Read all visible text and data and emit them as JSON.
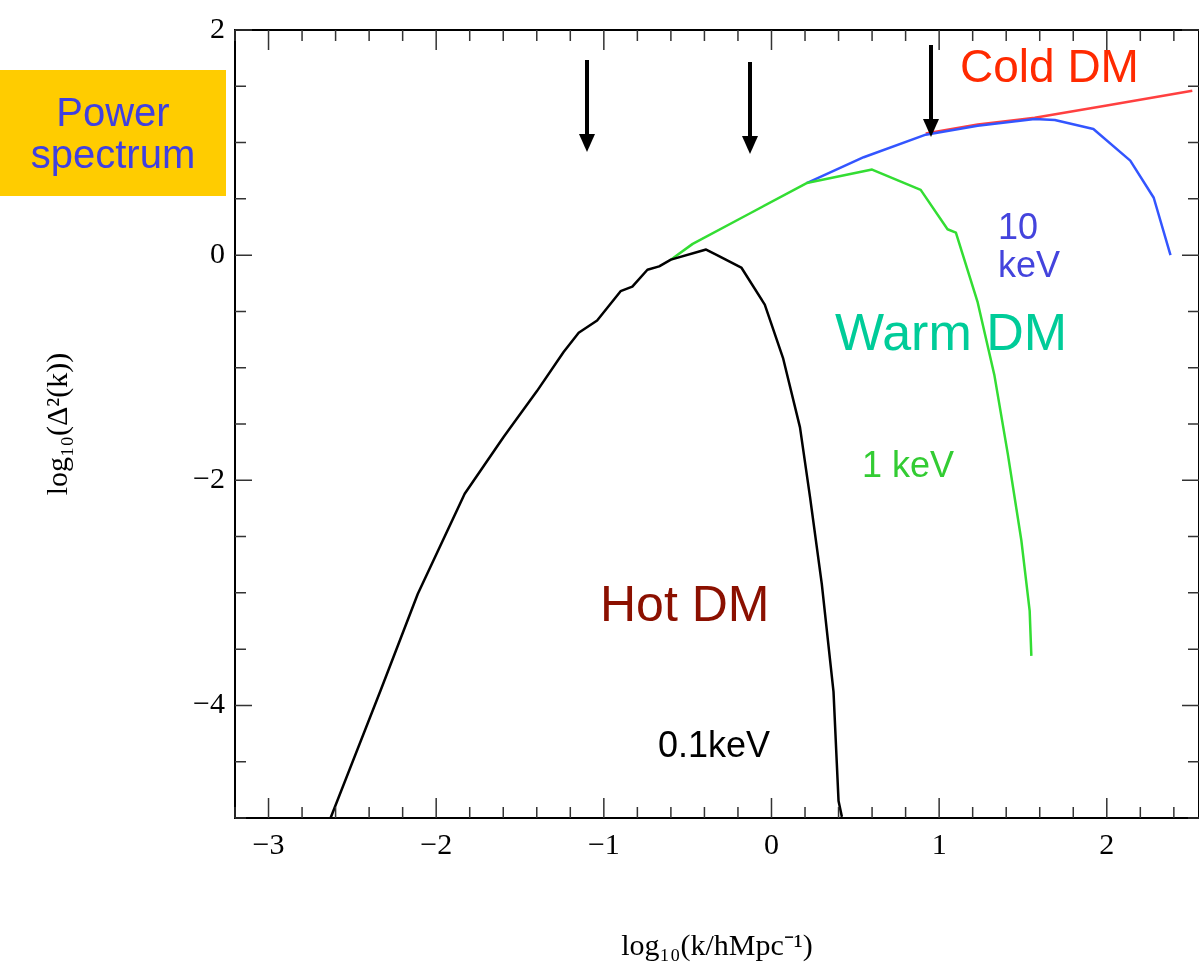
{
  "chart_data": {
    "type": "line",
    "xlabel": "log₁₀(k/hMpc⁻¹)",
    "ylabel": "log₁₀(Δ²(k))",
    "xlim": [
      -3.2,
      2.55
    ],
    "ylim": [
      -5,
      2
    ],
    "xticks": [
      {
        "value": -3.2,
        "label": null
      },
      -3,
      {
        "value": -2.8,
        "label": null
      },
      {
        "value": -2.6,
        "label": null
      },
      {
        "value": -2.4,
        "label": null
      },
      {
        "value": -2.2,
        "label": null
      },
      -2,
      {
        "value": -1.8,
        "label": null
      },
      {
        "value": -1.6,
        "label": null
      },
      {
        "value": -1.4,
        "label": null
      },
      {
        "value": -1.2,
        "label": null
      },
      -1,
      {
        "value": -0.8,
        "label": null
      },
      {
        "value": -0.6,
        "label": null
      },
      {
        "value": -0.4,
        "label": null
      },
      {
        "value": -0.2,
        "label": null
      },
      0,
      {
        "value": 0.2,
        "label": null
      },
      {
        "value": 0.4,
        "label": null
      },
      {
        "value": 0.6,
        "label": null
      },
      {
        "value": 0.8,
        "label": null
      },
      1,
      {
        "value": 1.2,
        "label": null
      },
      {
        "value": 1.4,
        "label": null
      },
      {
        "value": 1.6,
        "label": null
      },
      {
        "value": 1.8,
        "label": null
      },
      2,
      {
        "value": 2.2,
        "label": null
      },
      {
        "value": 2.4,
        "label": null
      }
    ],
    "yticks": [
      {
        "value": -5,
        "label": null
      },
      {
        "value": -4.5,
        "label": null
      },
      -4,
      {
        "value": -3.5,
        "label": null
      },
      {
        "value": -3,
        "label": null
      },
      {
        "value": -2.5,
        "label": null
      },
      -2,
      {
        "value": -1.5,
        "label": null
      },
      {
        "value": -1,
        "label": null
      },
      {
        "value": -0.5,
        "label": null
      },
      0,
      {
        "value": 0.5,
        "label": null
      },
      {
        "value": 1,
        "label": null
      },
      {
        "value": 1.5,
        "label": null
      },
      2
    ],
    "grid": false,
    "legend": false,
    "marker": "none",
    "line_style": "solid",
    "series": [
      {
        "name": "Cold DM",
        "color": "#ff4040",
        "x": [
          0.92,
          1.23,
          1.57,
          2.0,
          2.51
        ],
        "values": [
          1.08,
          1.16,
          1.22,
          1.33,
          1.46
        ]
      },
      {
        "name": "10 keV",
        "color": "#3355ff",
        "x": [
          0.21,
          0.55,
          0.92,
          1.23,
          1.57,
          1.69,
          1.92,
          2.14,
          2.28,
          2.38
        ],
        "values": [
          0.64,
          0.87,
          1.07,
          1.15,
          1.21,
          1.2,
          1.12,
          0.84,
          0.51,
          0.0
        ]
      },
      {
        "name": "1 keV",
        "color": "#33dd33",
        "x": [
          -0.6,
          -0.47,
          -0.13,
          0.21,
          0.6,
          0.89,
          1.05,
          1.1,
          1.23,
          1.33,
          1.41,
          1.49,
          1.54,
          1.55
        ],
        "values": [
          -0.04,
          0.1,
          0.37,
          0.64,
          0.76,
          0.58,
          0.23,
          0.2,
          -0.42,
          -1.07,
          -1.77,
          -2.53,
          -3.16,
          -3.56
        ]
      },
      {
        "name": "0.1keV",
        "color": "#000000",
        "x": [
          -2.63,
          -2.33,
          -2.11,
          -1.83,
          -1.6,
          -1.4,
          -1.24,
          -1.15,
          -1.04,
          -0.9,
          -0.83,
          -0.74,
          -0.67,
          -0.6,
          -0.39,
          -0.18,
          -0.04,
          0.07,
          0.17,
          0.23,
          0.3,
          0.37,
          0.4,
          0.42
        ],
        "values": [
          -5,
          -3.86,
          -3.01,
          -2.12,
          -1.62,
          -1.21,
          -0.86,
          -0.69,
          -0.58,
          -0.32,
          -0.28,
          -0.13,
          -0.1,
          -0.04,
          0.05,
          -0.11,
          -0.44,
          -0.92,
          -1.53,
          -2.15,
          -2.92,
          -3.88,
          -4.85,
          -4.99
        ]
      }
    ],
    "annotations": [
      "Power spectrum",
      "Warm DM",
      "Hot DM"
    ]
  }
}
